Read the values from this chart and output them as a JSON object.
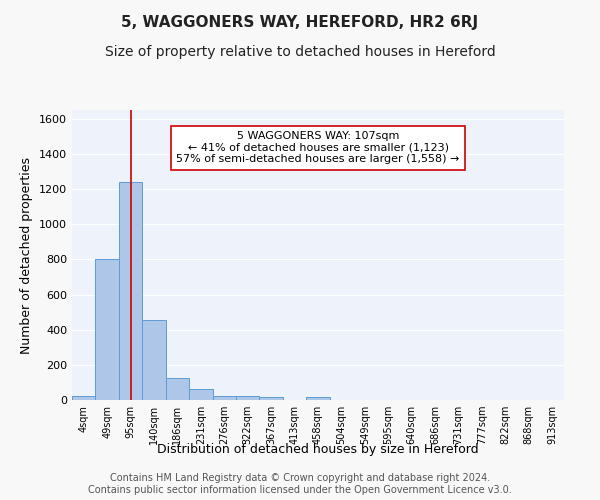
{
  "title": "5, WAGGONERS WAY, HEREFORD, HR2 6RJ",
  "subtitle": "Size of property relative to detached houses in Hereford",
  "xlabel": "Distribution of detached houses by size in Hereford",
  "ylabel": "Number of detached properties",
  "bin_labels": [
    "4sqm",
    "49sqm",
    "95sqm",
    "140sqm",
    "186sqm",
    "231sqm",
    "276sqm",
    "322sqm",
    "367sqm",
    "413sqm",
    "458sqm",
    "504sqm",
    "549sqm",
    "595sqm",
    "640sqm",
    "686sqm",
    "731sqm",
    "777sqm",
    "822sqm",
    "868sqm",
    "913sqm"
  ],
  "bar_values": [
    25,
    800,
    1240,
    455,
    125,
    60,
    20,
    20,
    15,
    0,
    15,
    0,
    0,
    0,
    0,
    0,
    0,
    0,
    0,
    0,
    0
  ],
  "bar_color": "#aec6e8",
  "bar_edge_color": "#5b9bd5",
  "background_color": "#eef3fb",
  "grid_color": "#ffffff",
  "ylim": [
    0,
    1650
  ],
  "yticks": [
    0,
    200,
    400,
    600,
    800,
    1000,
    1200,
    1400,
    1600
  ],
  "property_line_x": 2.0,
  "property_line_color": "#cc0000",
  "annotation_text": "5 WAGGONERS WAY: 107sqm\n← 41% of detached houses are smaller (1,123)\n57% of semi-detached houses are larger (1,558) →",
  "annotation_box_color": "#ffffff",
  "annotation_box_edge_color": "#cc0000",
  "footer_text": "Contains HM Land Registry data © Crown copyright and database right 2024.\nContains public sector information licensed under the Open Government Licence v3.0.",
  "title_fontsize": 11,
  "subtitle_fontsize": 10,
  "axis_label_fontsize": 9,
  "tick_fontsize": 8,
  "annotation_fontsize": 8,
  "footer_fontsize": 7
}
